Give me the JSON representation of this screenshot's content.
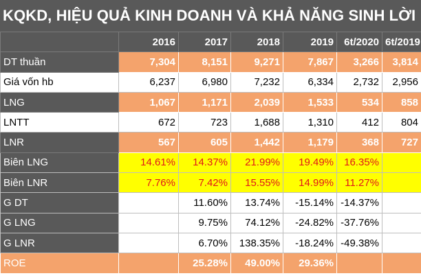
{
  "title": "KQKD, HIỆU QUẢ KINH DOANH VÀ KHẢ NĂNG SINH LỜI",
  "headers": [
    "",
    "2016",
    "2017",
    "2018",
    "2019",
    "6t/2020",
    "6t/2019"
  ],
  "rows": [
    {
      "label": "DT thuần",
      "values": [
        "7,304",
        "8,151",
        "9,271",
        "7,867",
        "3,266",
        "3,814"
      ]
    },
    {
      "label": "Giá vốn hb",
      "values": [
        "6,237",
        "6,980",
        "7,232",
        "6,334",
        "2,732",
        "2,956"
      ]
    },
    {
      "label": "LNG",
      "values": [
        "1,067",
        "1,171",
        "2,039",
        "1,533",
        "534",
        "858"
      ]
    },
    {
      "label": "LNTT",
      "values": [
        "672",
        "723",
        "1,688",
        "1,310",
        "412",
        "804"
      ]
    },
    {
      "label": "LNR",
      "values": [
        "567",
        "605",
        "1,442",
        "1,179",
        "368",
        "727"
      ]
    },
    {
      "label": "Biên LNG",
      "values": [
        "14.61%",
        "14.37%",
        "21.99%",
        "19.49%",
        "16.35%",
        ""
      ]
    },
    {
      "label": "Biên LNR",
      "values": [
        "7.76%",
        "7.42%",
        "15.55%",
        "14.99%",
        "11.27%",
        ""
      ]
    },
    {
      "label": "G DT",
      "values": [
        "",
        "11.60%",
        "13.74%",
        "-15.14%",
        "-14.37%",
        ""
      ]
    },
    {
      "label": "G LNG",
      "values": [
        "",
        "9.75%",
        "74.12%",
        "-24.82%",
        "-37.76%",
        ""
      ]
    },
    {
      "label": "G LNR",
      "values": [
        "",
        "6.70%",
        "138.35%",
        "-18.24%",
        "-49.38%",
        ""
      ]
    },
    {
      "label": "ROE",
      "values": [
        "",
        "25.28%",
        "49.00%",
        "29.36%",
        "",
        ""
      ]
    }
  ]
}
